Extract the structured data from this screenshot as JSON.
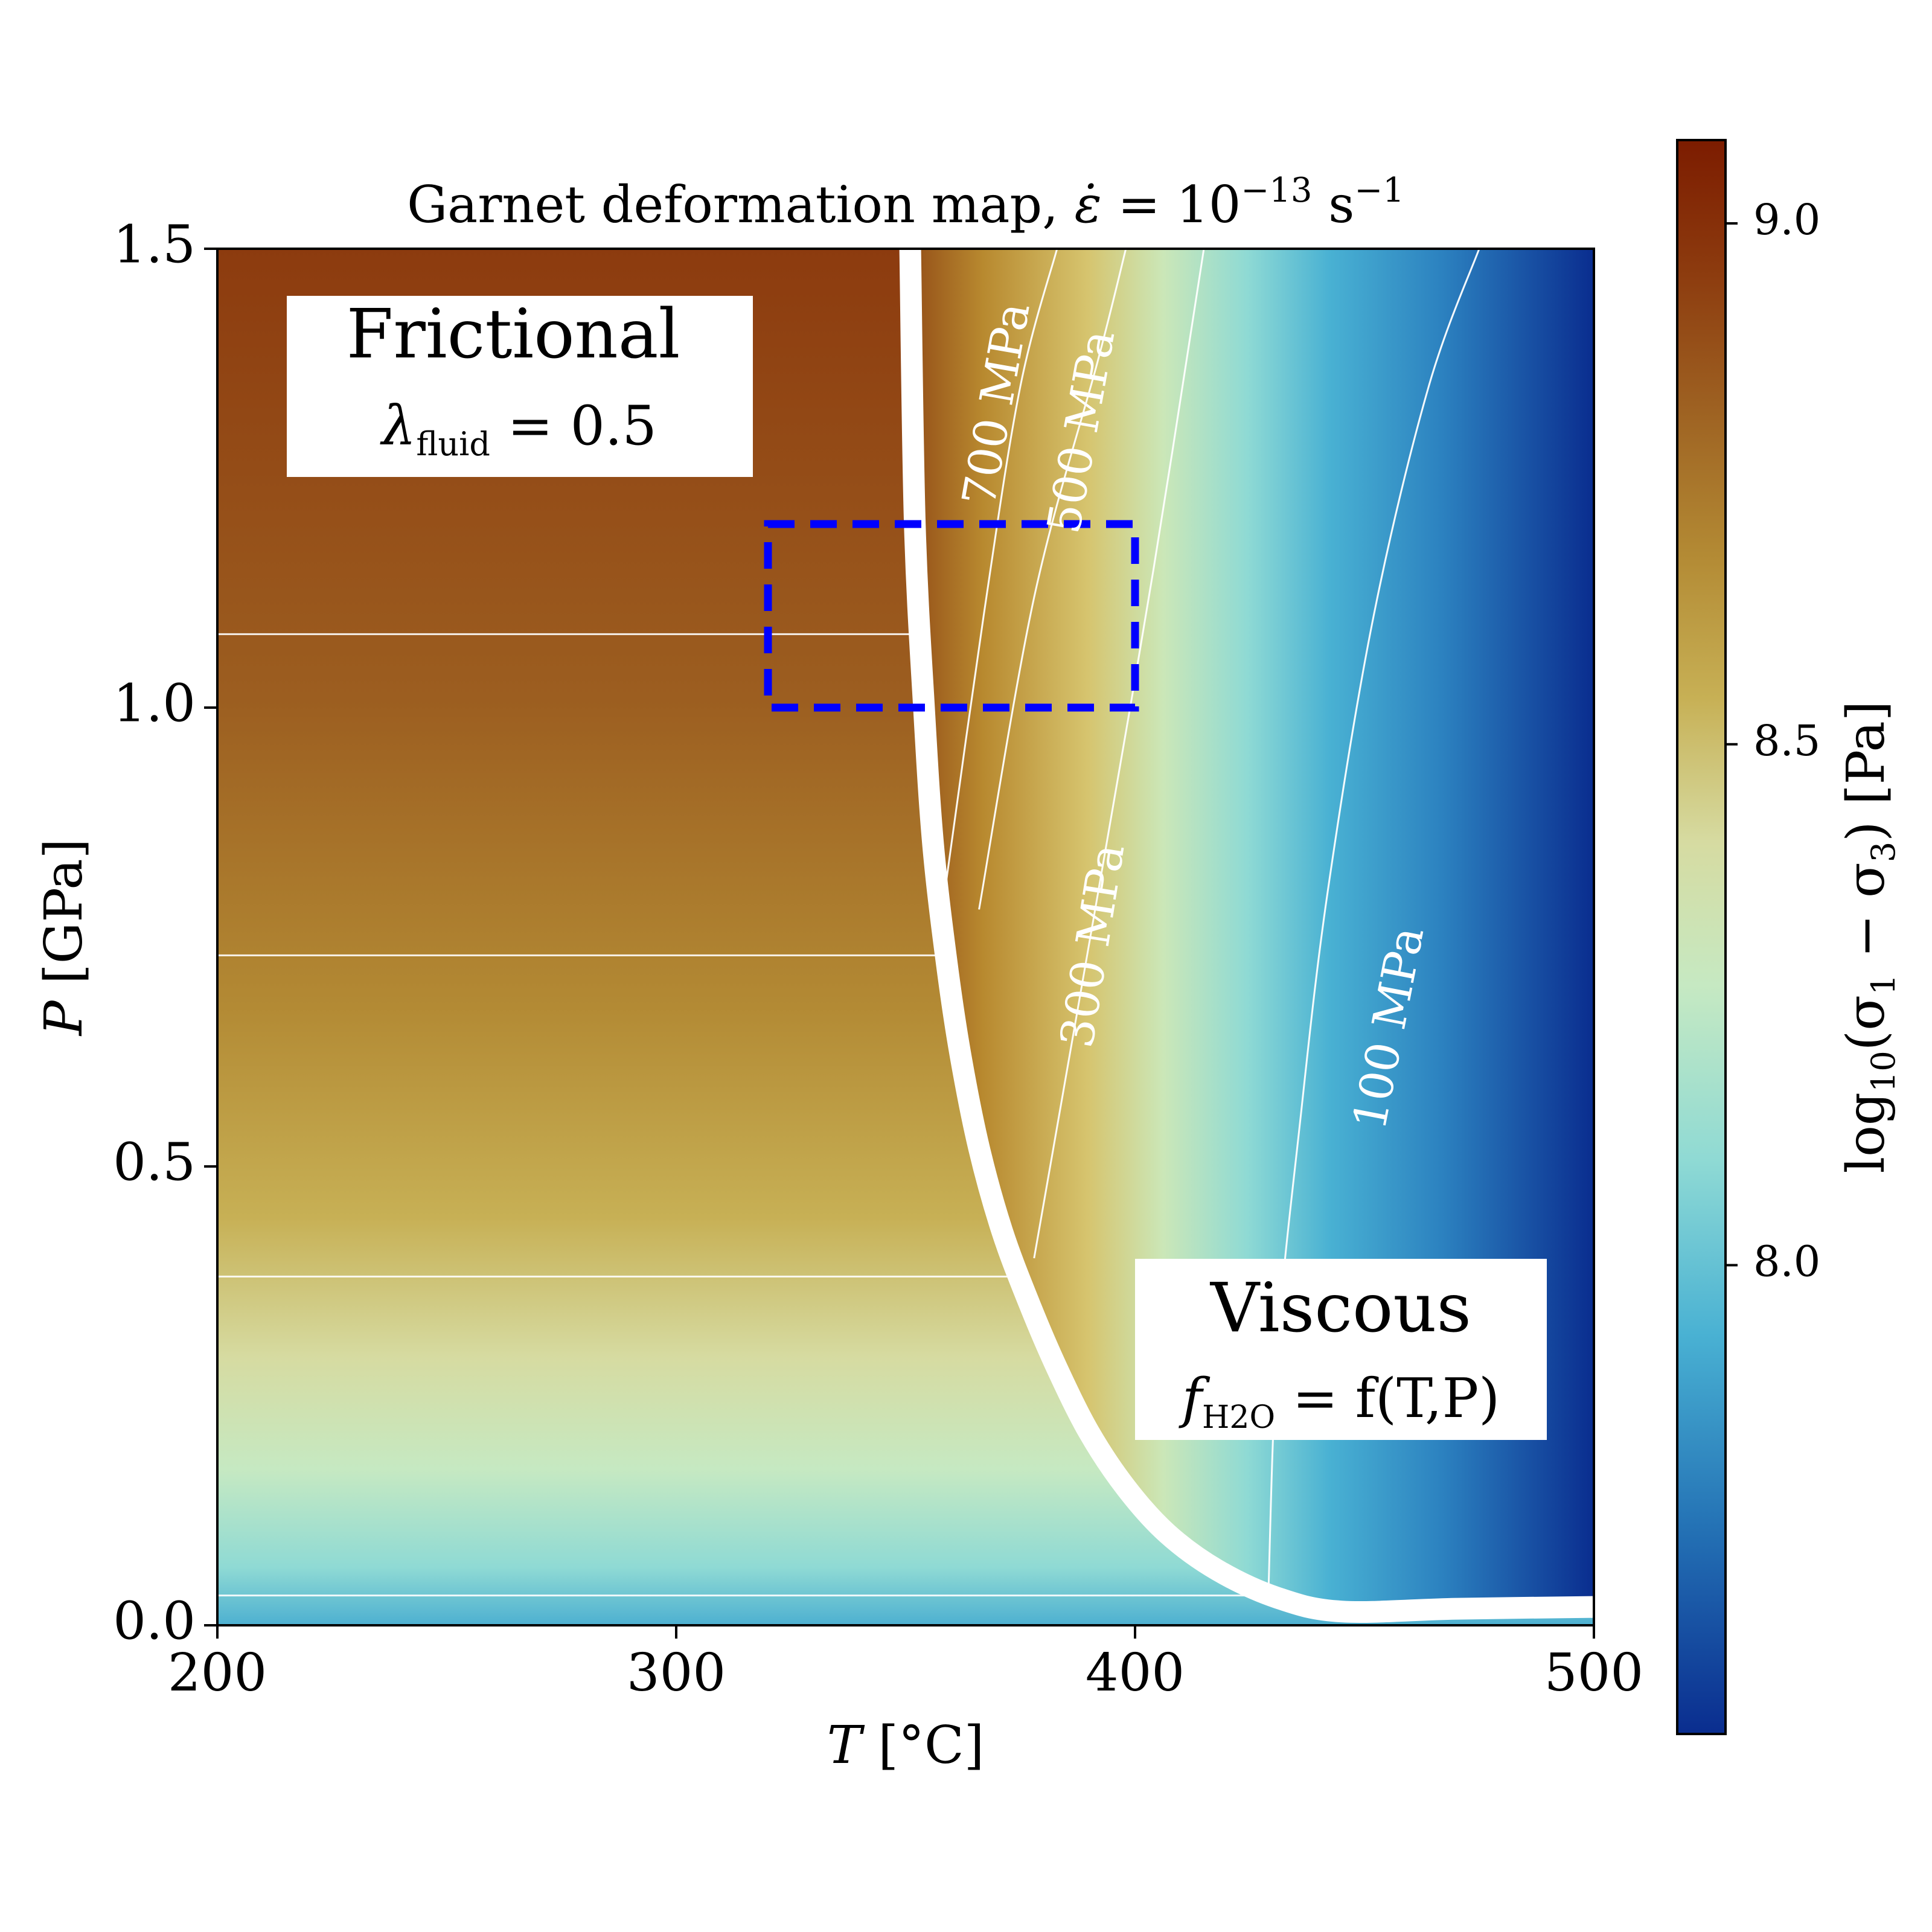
{
  "chart_data": {
    "type": "heatmap",
    "title": {
      "prefix": "Garnet deformation map, ",
      "symbol": "ε̇",
      "eq": " = 10",
      "exp": "−13",
      "unit": " s",
      "unit_exp": "−1"
    },
    "xlabel": {
      "symbol": "T",
      "unit": " [°C]"
    },
    "ylabel": {
      "symbol": "P",
      "unit": " [GPa]"
    },
    "xlim": [
      200,
      500
    ],
    "ylim": [
      0,
      1.5
    ],
    "xticks": [
      200,
      300,
      400,
      500
    ],
    "xtick_labels": [
      "200",
      "300",
      "400",
      "500"
    ],
    "yticks": [
      0.0,
      0.5,
      1.0,
      1.5
    ],
    "ytick_labels": [
      "0.0",
      "0.5",
      "1.0",
      "1.5"
    ],
    "colorbar": {
      "label": {
        "pre": "log",
        "sub": "10",
        "mid": "(σ",
        "s1": "1",
        "minus": " − σ",
        "s3": "3",
        "post": ") [Pa]"
      },
      "range": [
        7.55,
        9.08
      ],
      "ticks": [
        8.0,
        8.5,
        9.0
      ],
      "tick_labels": [
        "8.0",
        "8.5",
        "9.0"
      ],
      "colormap": [
        "#0a2d8f",
        "#2472b5",
        "#49b1d3",
        "#8fdad4",
        "#c6e9c2",
        "#d6dba1",
        "#c7b055",
        "#b38a34",
        "#9e6222",
        "#8c3a0e",
        "#7c1c00"
      ]
    },
    "transition_boundary": {
      "T": [
        351,
        352,
        354,
        356,
        359,
        362,
        366,
        371,
        377,
        383,
        390,
        398,
        407,
        418,
        431,
        445,
        470,
        500
      ],
      "P": [
        1.5,
        1.2,
        1.0,
        0.85,
        0.72,
        0.62,
        0.52,
        0.43,
        0.35,
        0.28,
        0.21,
        0.15,
        0.1,
        0.06,
        0.03,
        0.015,
        0.018,
        0.02
      ]
    },
    "frictional_contours": [
      {
        "P": 0.0325,
        "T_end": 428
      },
      {
        "P": 0.38,
        "T_end": 375
      },
      {
        "P": 0.73,
        "T_end": 358
      },
      {
        "P": 1.08,
        "T_end": 351
      }
    ],
    "viscous_contours": [
      {
        "label": "700 MPa",
        "value": 700,
        "T": [
          358,
          367,
          375,
          383
        ],
        "P": [
          0.78,
          1.1,
          1.35,
          1.5
        ]
      },
      {
        "label": "500 MPa",
        "value": 500,
        "T": [
          366,
          378,
          392,
          398
        ],
        "P": [
          0.78,
          1.12,
          1.38,
          1.5
        ]
      },
      {
        "label": "300 MPa",
        "value": 300,
        "T": [
          378,
          385,
          392,
          404,
          415
        ],
        "P": [
          0.4,
          0.6,
          0.8,
          1.15,
          1.5
        ]
      },
      {
        "label": "100 MPa",
        "value": 100,
        "T": [
          429,
          431,
          436,
          442,
          452,
          464,
          475
        ],
        "P": [
          0.025,
          0.3,
          0.55,
          0.8,
          1.1,
          1.35,
          1.5
        ]
      }
    ],
    "highlight_box": {
      "T": [
        320,
        400
      ],
      "P": [
        1.0,
        1.2
      ],
      "color": "#0000ff",
      "style": "dashed"
    },
    "annotations": {
      "frictional": {
        "title": "Frictional",
        "symbol": "λ",
        "sub": "fluid",
        "value": " = 0.5"
      },
      "viscous": {
        "title": "Viscous",
        "symbol": "f",
        "sub": "H2O",
        "value": " = f(T,P)"
      }
    },
    "legend": "none",
    "grid": false
  }
}
